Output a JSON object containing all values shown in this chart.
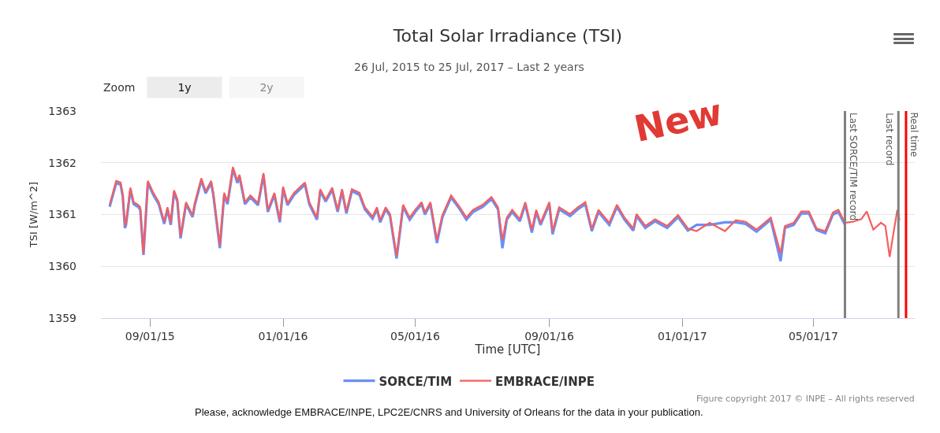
{
  "chart_data": {
    "type": "line",
    "title": "Total Solar Irradiance (TSI)",
    "subtitle": "26 Jul, 2015 to 25 Jul, 2017 – Last 2 years",
    "xlabel": "Time [UTC]",
    "ylabel": "TSI [W/m^2]",
    "annotations": [
      "New",
      "Zoom",
      "1y",
      "2y",
      "Figure copyright 2017 © INPE – All rights reserved",
      "Please, acknowledge EMBRACE/INPE, LPC2E/CNRS and University of Orleans for the data in your publication."
    ],
    "x": [
      "2015-07-26",
      "2015-08-01",
      "2015-08-05",
      "2015-08-07",
      "2015-08-09",
      "2015-08-10",
      "2015-08-14",
      "2015-08-17",
      "2015-08-21",
      "2015-08-23",
      "2015-08-26",
      "2015-08-30",
      "2015-09-04",
      "2015-09-09",
      "2015-09-14",
      "2015-09-17",
      "2015-09-20",
      "2015-09-23",
      "2015-09-26",
      "2015-09-29",
      "2015-10-04",
      "2015-10-10",
      "2015-10-12",
      "2015-10-18",
      "2015-10-22",
      "2015-10-27",
      "2015-10-29",
      "2015-11-04",
      "2015-11-08",
      "2015-11-11",
      "2015-11-16",
      "2015-11-20",
      "2015-11-22",
      "2015-11-27",
      "2015-12-02",
      "2015-12-09",
      "2015-12-14",
      "2015-12-18",
      "2015-12-24",
      "2015-12-29",
      "2016-01-01",
      "2016-01-05",
      "2016-01-11",
      "2016-01-21",
      "2016-01-25",
      "2016-02-01",
      "2016-02-04",
      "2016-02-09",
      "2016-02-15",
      "2016-02-20",
      "2016-02-24",
      "2016-02-28",
      "2016-03-04",
      "2016-03-11",
      "2016-03-16",
      "2016-03-23",
      "2016-03-27",
      "2016-03-30",
      "2016-04-04",
      "2016-04-08",
      "2016-04-14",
      "2016-04-20",
      "2016-04-26",
      "2016-05-01",
      "2016-05-07",
      "2016-05-10",
      "2016-05-15",
      "2016-05-21",
      "2016-05-26",
      "2016-06-03",
      "2016-06-11",
      "2016-06-17",
      "2016-06-23",
      "2016-07-02",
      "2016-07-10",
      "2016-07-16",
      "2016-07-20",
      "2016-07-24",
      "2016-07-29",
      "2016-08-05",
      "2016-08-10",
      "2016-08-16",
      "2016-08-20",
      "2016-08-24",
      "2016-09-01",
      "2016-09-04",
      "2016-09-10",
      "2016-09-20",
      "2016-09-27",
      "2016-10-04",
      "2016-10-10",
      "2016-10-16",
      "2016-10-26",
      "2016-11-02",
      "2016-11-09",
      "2016-11-17",
      "2016-11-20",
      "2016-11-28",
      "2016-12-07",
      "2016-12-18",
      "2016-12-28",
      "2017-01-06",
      "2017-01-14",
      "2017-01-26",
      "2017-02-09",
      "2017-02-19",
      "2017-02-28",
      "2017-03-10",
      "2017-03-23",
      "2017-04-01",
      "2017-04-05",
      "2017-04-13",
      "2017-04-20",
      "2017-04-27",
      "2017-05-04",
      "2017-05-12",
      "2017-05-19",
      "2017-05-24",
      "2017-05-30",
      "2017-06-06",
      "2017-06-14",
      "2017-06-19",
      "2017-06-25",
      "2017-07-02",
      "2017-07-06",
      "2017-07-10",
      "2017-07-13",
      "2017-07-17",
      "2017-07-19"
    ],
    "series": [
      {
        "name": "SORCE/TIM",
        "color": "#6b8ff5",
        "values": [
          1361.15,
          1361.61,
          1361.58,
          1361.35,
          1360.74,
          1360.8,
          1361.48,
          1361.2,
          1361.15,
          1361.1,
          1360.22,
          1361.61,
          1361.38,
          1361.2,
          1360.82,
          1361.1,
          1360.8,
          1361.43,
          1361.26,
          1360.54,
          1361.2,
          1360.95,
          1361.18,
          1361.66,
          1361.41,
          1361.61,
          1361.38,
          1360.35,
          1361.38,
          1361.2,
          1361.88,
          1361.61,
          1361.73,
          1361.2,
          1361.33,
          1361.18,
          1361.76,
          1361.05,
          1361.38,
          1360.85,
          1361.5,
          1361.18,
          1361.38,
          1361.58,
          1361.2,
          1360.9,
          1361.45,
          1361.25,
          1361.48,
          1361.05,
          1361.45,
          1361.02,
          1361.45,
          1361.38,
          1361.1,
          1360.92,
          1361.1,
          1360.85,
          1361.1,
          1360.97,
          1360.15,
          1361.15,
          1360.9,
          1361.05,
          1361.2,
          1361.0,
          1361.2,
          1360.45,
          1360.95,
          1361.33,
          1361.1,
          1360.9,
          1361.05,
          1361.15,
          1361.3,
          1361.1,
          1360.35,
          1360.9,
          1361.05,
          1360.87,
          1361.2,
          1360.65,
          1361.05,
          1360.8,
          1361.2,
          1360.62,
          1361.1,
          1360.97,
          1361.1,
          1361.2,
          1360.68,
          1361.05,
          1360.8,
          1361.15,
          1360.9,
          1360.69,
          1360.97,
          1360.74,
          1360.87,
          1360.74,
          1360.95,
          1360.69,
          1360.8,
          1360.8,
          1360.85,
          1360.85,
          1360.82,
          1360.67,
          1360.9,
          1360.1,
          1360.74,
          1360.8,
          1361.02,
          1361.02,
          1360.7,
          1360.64,
          1361.0,
          1361.05,
          1360.8,
          null,
          null,
          null,
          null,
          null,
          null,
          null,
          null,
          null,
          null
        ]
      },
      {
        "name": "EMBRACE/INPE",
        "color": "#f55e5e",
        "values": [
          1361.19,
          1361.65,
          1361.62,
          1361.39,
          1360.78,
          1360.84,
          1361.52,
          1361.24,
          1361.19,
          1361.14,
          1360.25,
          1361.65,
          1361.42,
          1361.24,
          1360.86,
          1361.14,
          1360.84,
          1361.47,
          1361.3,
          1360.58,
          1361.24,
          1360.99,
          1361.22,
          1361.7,
          1361.45,
          1361.65,
          1361.42,
          1360.4,
          1361.42,
          1361.24,
          1361.92,
          1361.65,
          1361.77,
          1361.24,
          1361.37,
          1361.22,
          1361.8,
          1361.09,
          1361.42,
          1360.89,
          1361.54,
          1361.22,
          1361.42,
          1361.62,
          1361.24,
          1360.94,
          1361.49,
          1361.29,
          1361.52,
          1361.09,
          1361.49,
          1361.06,
          1361.49,
          1361.42,
          1361.14,
          1360.96,
          1361.14,
          1360.89,
          1361.14,
          1361.01,
          1360.2,
          1361.19,
          1360.94,
          1361.09,
          1361.24,
          1361.04,
          1361.24,
          1360.51,
          1360.99,
          1361.37,
          1361.14,
          1360.94,
          1361.09,
          1361.19,
          1361.34,
          1361.14,
          1360.51,
          1360.94,
          1361.09,
          1360.91,
          1361.24,
          1360.71,
          1361.09,
          1360.84,
          1361.24,
          1360.68,
          1361.14,
          1361.01,
          1361.14,
          1361.24,
          1360.73,
          1361.09,
          1360.84,
          1361.19,
          1360.94,
          1360.73,
          1361.01,
          1360.78,
          1360.91,
          1360.78,
          1360.99,
          1360.73,
          1360.68,
          1360.84,
          1360.68,
          1360.89,
          1360.86,
          1360.71,
          1360.94,
          1360.25,
          1360.78,
          1360.84,
          1361.06,
          1361.06,
          1360.73,
          1360.68,
          1361.04,
          1361.09,
          1360.84,
          1360.86,
          1360.91,
          1361.06,
          1360.71,
          1360.84,
          1360.78,
          1360.18,
          1360.58,
          1361.09,
          1360.89
        ]
      }
    ],
    "xlim": [
      "2015-07-18",
      "2017-08-02"
    ],
    "xticks": [
      {
        "value": "2015-09-01",
        "label": "09/01/15"
      },
      {
        "value": "2016-01-01",
        "label": "01/01/16"
      },
      {
        "value": "2016-05-01",
        "label": "05/01/16"
      },
      {
        "value": "2016-09-01",
        "label": "09/01/16"
      },
      {
        "value": "2017-01-01",
        "label": "01/01/17"
      },
      {
        "value": "2017-05-01",
        "label": "05/01/17"
      }
    ],
    "ylim": [
      1359,
      1363
    ],
    "yticks": [
      1359,
      1360,
      1361,
      1362,
      1363
    ],
    "ref_lines": [
      {
        "axis": "x",
        "value": "2017-05-30",
        "label": "Last SORCE/TIM record",
        "color": "#808080"
      },
      {
        "axis": "x",
        "value": "2017-07-18",
        "label": "Last record",
        "color": "#808080"
      },
      {
        "axis": "x",
        "value": "2017-07-25",
        "label": "Real time",
        "color": "#ff0000"
      }
    ],
    "grid": "y",
    "legend": "bottom",
    "marker": "none",
    "line_style": "solid"
  }
}
